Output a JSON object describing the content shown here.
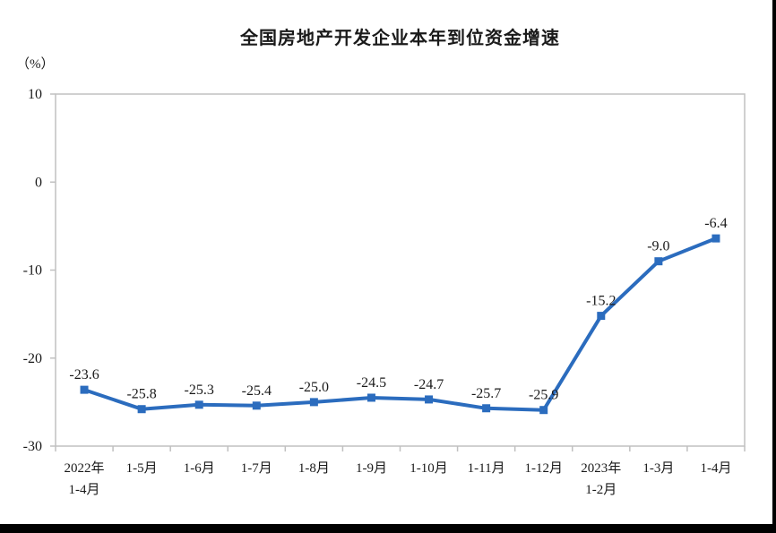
{
  "title": "全国房地产开发企业本年到位资金增速",
  "unit_label": "（%）",
  "colors": {
    "line": "#2B6CBE",
    "axis": "#C0C0C0",
    "text": "#1A1A1A"
  },
  "chart_data": {
    "type": "line",
    "title": "全国房地产开发企业本年到位资金增速",
    "ylabel": "（%）",
    "xlabel": "",
    "categories": [
      "2022年\n1-4月",
      "1-5月",
      "1-6月",
      "1-7月",
      "1-8月",
      "1-9月",
      "1-10月",
      "1-11月",
      "1-12月",
      "2023年\n1-2月",
      "1-3月",
      "1-4月"
    ],
    "values": [
      -23.6,
      -25.8,
      -25.3,
      -25.4,
      -25.0,
      -24.5,
      -24.7,
      -25.7,
      -25.9,
      -15.2,
      -9.0,
      -6.4
    ],
    "yticks": [
      10,
      0,
      -10,
      -20,
      -30
    ],
    "ylim": [
      -30,
      10
    ],
    "grid": false,
    "legend": "none",
    "marker": "square",
    "data_labels_shown": true
  }
}
